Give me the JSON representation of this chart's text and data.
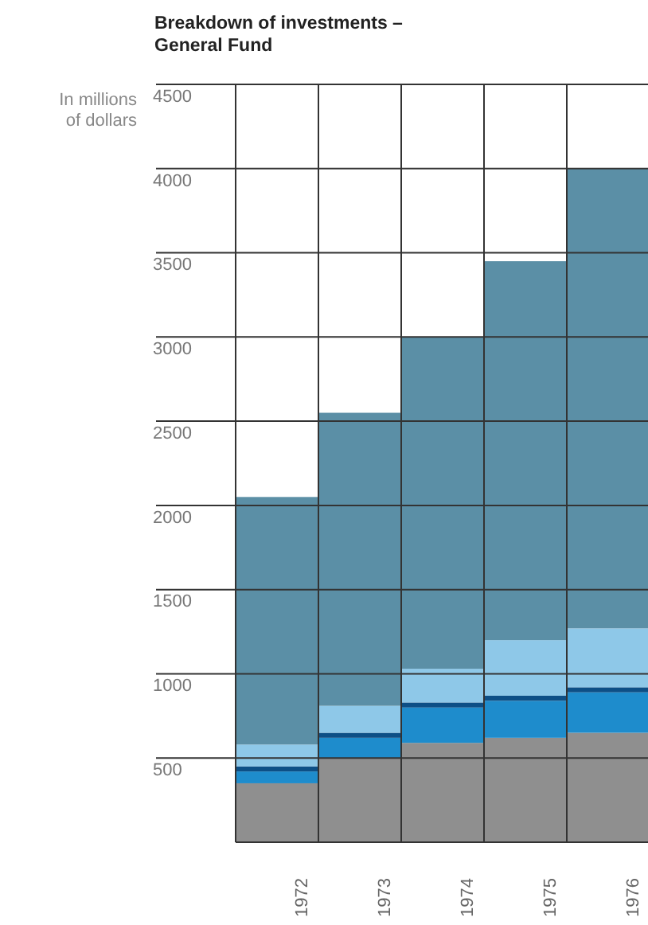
{
  "chart_data": {
    "type": "bar",
    "stacked": true,
    "title": "Breakdown of investments –\nGeneral Fund",
    "ylabel": "In millions\nof dollars",
    "categories": [
      "1972",
      "1973",
      "1974",
      "1975",
      "1976"
    ],
    "series": [
      {
        "color": "#8f8f8f",
        "values": [
          350,
          500,
          590,
          620,
          650
        ]
      },
      {
        "color": "#1e8ccc",
        "values": [
          70,
          120,
          210,
          220,
          240
        ]
      },
      {
        "color": "#0d4f86",
        "values": [
          30,
          30,
          30,
          30,
          30
        ]
      },
      {
        "color": "#8ec8e8",
        "values": [
          130,
          160,
          200,
          330,
          350
        ]
      },
      {
        "color": "#5b8fa6",
        "values": [
          1470,
          1740,
          1970,
          2250,
          2730
        ]
      }
    ],
    "ylim": [
      0,
      4500
    ],
    "yticks": [
      500,
      1000,
      1500,
      2000,
      2500,
      3000,
      3500,
      4000,
      4500
    ],
    "grid": true
  }
}
